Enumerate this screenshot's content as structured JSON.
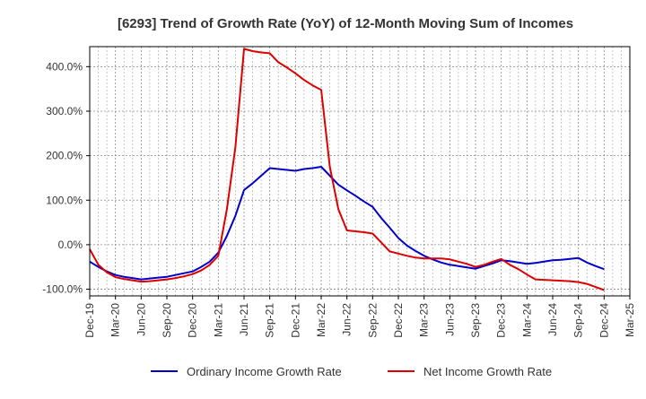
{
  "chart_data": {
    "type": "line",
    "title": "[6293]  Trend of Growth Rate (YoY) of 12-Month Moving Sum of Incomes",
    "xlabel": "",
    "ylabel": "",
    "ylim": [
      -115,
      445
    ],
    "yticks": [
      -100,
      0,
      100,
      200,
      300,
      400
    ],
    "ytick_labels": [
      "-100.0%",
      "0.0%",
      "100.0%",
      "200.0%",
      "300.0%",
      "400.0%"
    ],
    "x_range": [
      "2019-12",
      "2025-03"
    ],
    "xtick_labels": [
      "Dec-19",
      "Mar-20",
      "Jun-20",
      "Sep-20",
      "Dec-20",
      "Mar-21",
      "Jun-21",
      "Sep-21",
      "Dec-21",
      "Mar-22",
      "Jun-22",
      "Sep-22",
      "Dec-22",
      "Mar-23",
      "Jun-23",
      "Sep-23",
      "Dec-23",
      "Mar-24",
      "Jun-24",
      "Sep-24",
      "Dec-24",
      "Mar-25"
    ],
    "grid": true,
    "legend_position": "bottom",
    "x": [
      "2019-12",
      "2020-01",
      "2020-02",
      "2020-03",
      "2020-04",
      "2020-05",
      "2020-06",
      "2020-07",
      "2020-08",
      "2020-09",
      "2020-10",
      "2020-11",
      "2020-12",
      "2021-01",
      "2021-02",
      "2021-03",
      "2021-04",
      "2021-05",
      "2021-06",
      "2021-07",
      "2021-08",
      "2021-09",
      "2021-10",
      "2021-11",
      "2021-12",
      "2022-01",
      "2022-02",
      "2022-03",
      "2022-04",
      "2022-05",
      "2022-06",
      "2022-07",
      "2022-08",
      "2022-09",
      "2022-10",
      "2022-11",
      "2022-12",
      "2023-01",
      "2023-02",
      "2023-03",
      "2023-04",
      "2023-05",
      "2023-06",
      "2023-07",
      "2023-08",
      "2023-09",
      "2023-10",
      "2023-11",
      "2023-12",
      "2024-01",
      "2024-02",
      "2024-03",
      "2024-04",
      "2024-05",
      "2024-06",
      "2024-07",
      "2024-08",
      "2024-09",
      "2024-10",
      "2024-11",
      "2024-12"
    ],
    "series": [
      {
        "name": "Ordinary Income Growth Rate",
        "color": "#0000cc",
        "values": [
          -38,
          -50,
          -60,
          -68,
          -72,
          -75,
          -78,
          -76,
          -74,
          -72,
          -68,
          -64,
          -60,
          -50,
          -38,
          -18,
          20,
          65,
          123,
          138,
          155,
          172,
          170,
          168,
          166,
          170,
          172,
          175,
          155,
          135,
          122,
          110,
          97,
          85,
          60,
          38,
          15,
          -2,
          -14,
          -25,
          -33,
          -40,
          -45,
          -48,
          -51,
          -54,
          -48,
          -42,
          -35,
          -37,
          -40,
          -43,
          -41,
          -38,
          -35,
          -34,
          -32,
          -30,
          -40,
          -48,
          -55
        ]
      },
      {
        "name": "Net Income Growth Rate",
        "color": "#dd0000",
        "values": [
          -10,
          -45,
          -62,
          -73,
          -77,
          -80,
          -83,
          -82,
          -80,
          -78,
          -75,
          -71,
          -66,
          -58,
          -45,
          -25,
          80,
          220,
          440,
          435,
          432,
          430,
          410,
          398,
          385,
          370,
          358,
          348,
          175,
          80,
          32,
          30,
          28,
          25,
          5,
          -15,
          -20,
          -25,
          -29,
          -31,
          -31,
          -31,
          -33,
          -38,
          -43,
          -50,
          -45,
          -38,
          -32,
          -45,
          -55,
          -67,
          -78,
          -79,
          -80,
          -81,
          -82,
          -84,
          -88,
          -95,
          -102
        ]
      }
    ]
  }
}
